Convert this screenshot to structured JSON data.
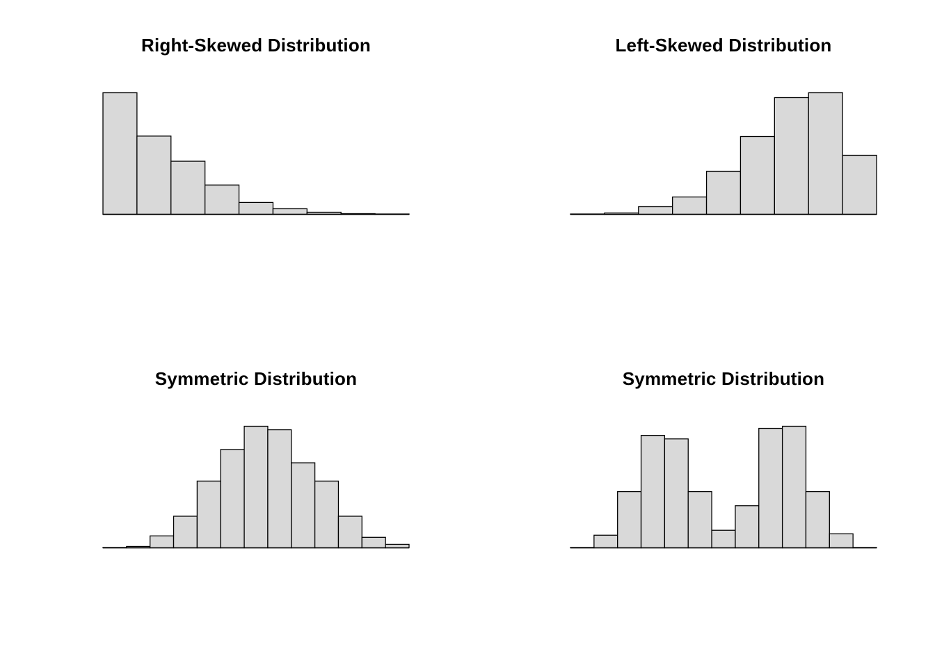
{
  "page": {
    "background": "#ffffff"
  },
  "style": {
    "bar_fill": "#d9d9d9",
    "bar_stroke": "#000000",
    "baseline_stroke": "#000000",
    "title_color": "#000000"
  },
  "chart_data": [
    {
      "type": "bar",
      "subtype": "histogram",
      "shape": "right-skewed",
      "title": "Right-Skewed Distribution",
      "xlabel": "",
      "ylabel": "",
      "axes_visible": false,
      "legend": false,
      "values": [
        174,
        112,
        76,
        42,
        17,
        8,
        3,
        1,
        0.5
      ]
    },
    {
      "type": "bar",
      "subtype": "histogram",
      "shape": "left-skewed",
      "title": "Left-Skewed Distribution",
      "xlabel": "",
      "ylabel": "",
      "axes_visible": false,
      "legend": false,
      "values": [
        0.5,
        2,
        11,
        25,
        62,
        112,
        168,
        175,
        85
      ]
    },
    {
      "type": "bar",
      "subtype": "histogram",
      "shape": "symmetric-unimodal",
      "title": "Symmetric Distribution",
      "xlabel": "",
      "ylabel": "",
      "axes_visible": false,
      "legend": false,
      "values": [
        0.5,
        2,
        17,
        45,
        95,
        140,
        173,
        168,
        121,
        95,
        45,
        15,
        5
      ]
    },
    {
      "type": "bar",
      "subtype": "histogram",
      "shape": "symmetric-bimodal",
      "title": "Symmetric Distribution",
      "xlabel": "",
      "ylabel": "",
      "axes_visible": false,
      "legend": false,
      "values": [
        0.5,
        18,
        80,
        160,
        155,
        80,
        25,
        60,
        170,
        173,
        80,
        20,
        0.5
      ]
    }
  ]
}
